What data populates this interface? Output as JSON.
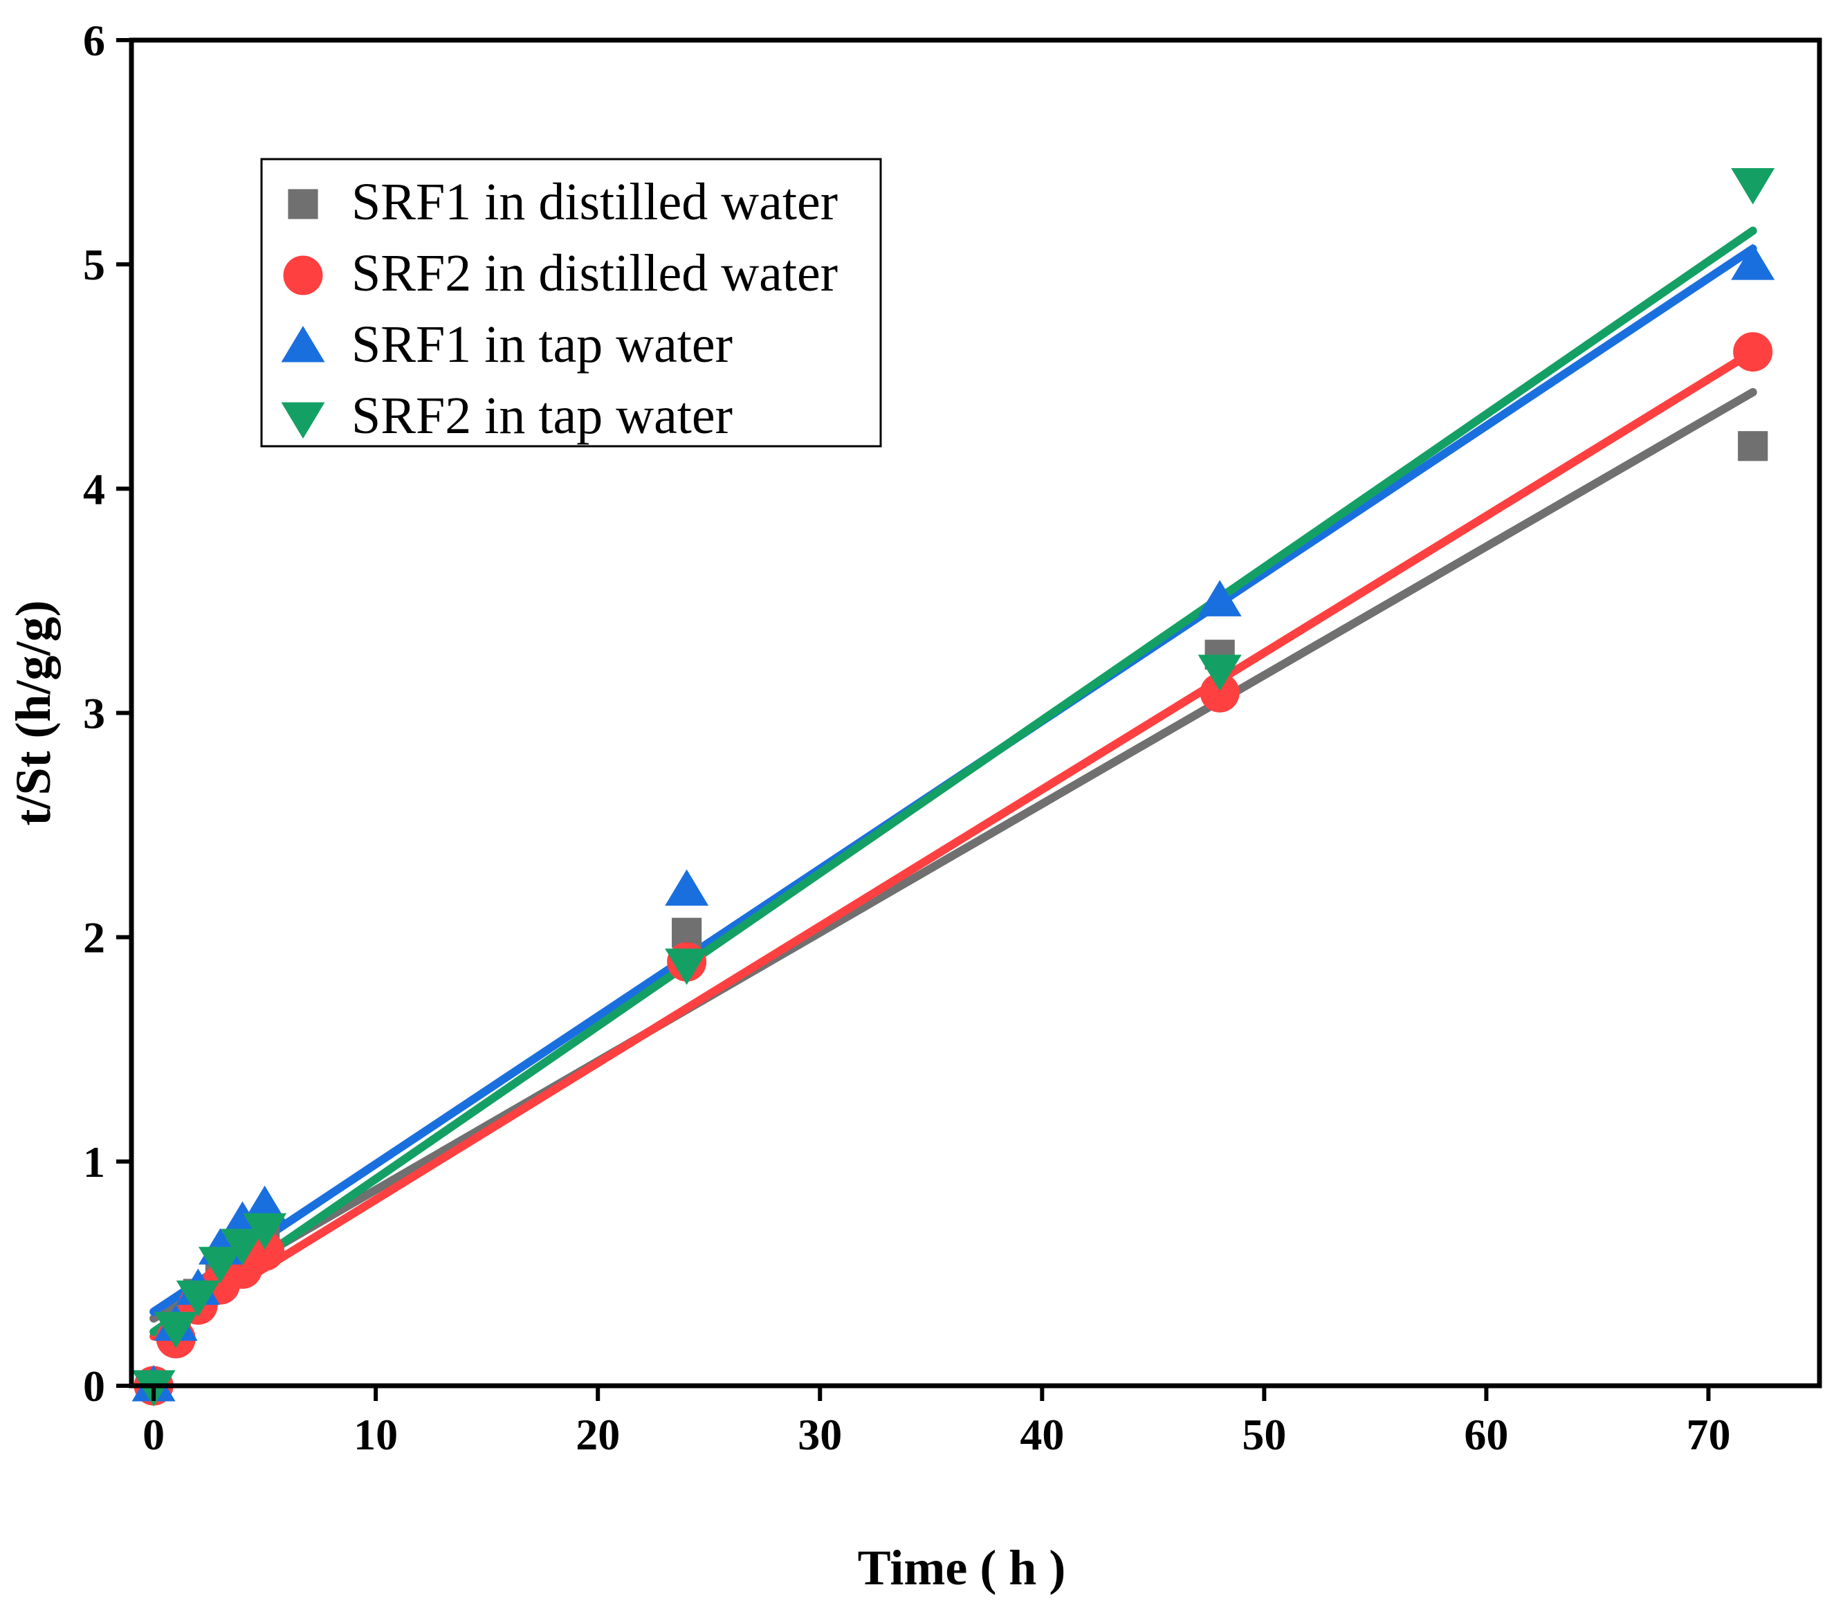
{
  "chart_data": {
    "type": "scatter",
    "title": "",
    "xlabel": "Time ( h )",
    "ylabel": "t/St (h/g/g)",
    "xlim": [
      -1,
      75
    ],
    "ylim": [
      0,
      6
    ],
    "xticks": [
      0,
      10,
      20,
      30,
      40,
      50,
      60,
      70
    ],
    "yticks": [
      0,
      1,
      2,
      3,
      4,
      5,
      6
    ],
    "grid": false,
    "legend_position": "top-left",
    "series": [
      {
        "name": "SRF1 in distilled water",
        "marker": "square",
        "color": "#707070",
        "x": [
          0,
          1,
          2,
          3,
          4,
          5,
          24,
          48,
          72
        ],
        "y": [
          0,
          0.27,
          0.41,
          0.5,
          0.57,
          0.66,
          2.02,
          3.26,
          4.19
        ],
        "fit": {
          "x": [
            0,
            72
          ],
          "y": [
            0.3,
            4.43
          ]
        }
      },
      {
        "name": "SRF2 in distilled water",
        "marker": "circle",
        "color": "#ff4040",
        "x": [
          0,
          1,
          2,
          3,
          4,
          5,
          24,
          48,
          72
        ],
        "y": [
          0,
          0.21,
          0.36,
          0.45,
          0.52,
          0.6,
          1.89,
          3.09,
          4.61
        ],
        "fit": {
          "x": [
            0,
            72
          ],
          "y": [
            0.22,
            4.61
          ]
        }
      },
      {
        "name": "SRF1 in tap water",
        "marker": "triangle-up",
        "color": "#1a6fdf",
        "x": [
          0,
          1,
          2,
          3,
          4,
          5,
          24,
          48,
          72
        ],
        "y": [
          0,
          0.27,
          0.43,
          0.61,
          0.73,
          0.8,
          2.21,
          3.5,
          5.0
        ],
        "fit": {
          "x": [
            0,
            72
          ],
          "y": [
            0.33,
            5.07
          ]
        }
      },
      {
        "name": "SRF2 in tap water",
        "marker": "triangle-down",
        "color": "#14a064",
        "x": [
          0,
          1,
          2,
          3,
          4,
          5,
          24,
          48,
          72
        ],
        "y": [
          0,
          0.26,
          0.4,
          0.55,
          0.63,
          0.7,
          1.88,
          3.19,
          5.36
        ],
        "fit": {
          "x": [
            0,
            72
          ],
          "y": [
            0.24,
            5.15
          ]
        }
      }
    ]
  }
}
